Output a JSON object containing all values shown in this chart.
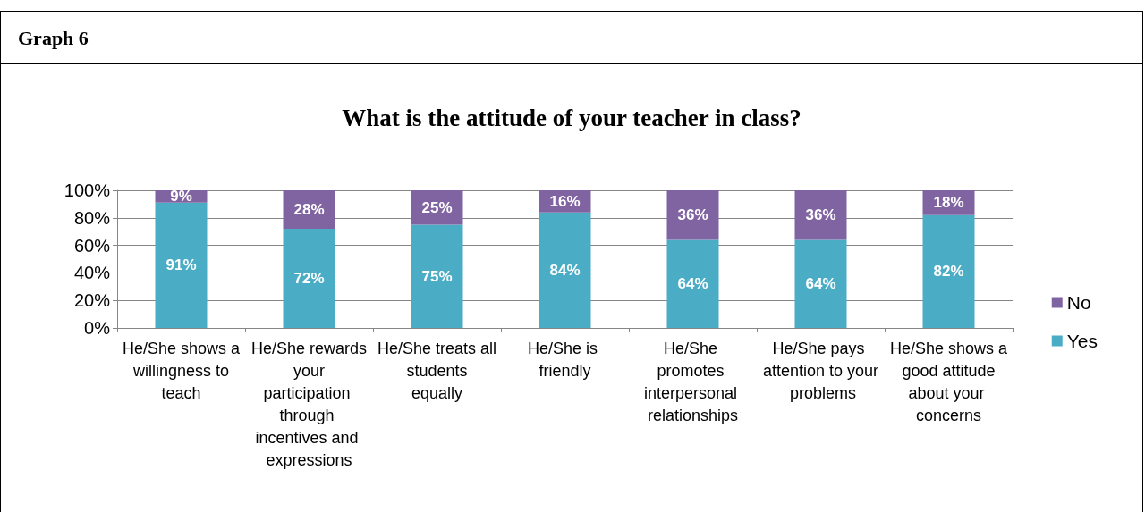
{
  "chart_data": {
    "type": "bar",
    "stacked": true,
    "subtitle": "Graph 6",
    "title": "What is the attitude of your teacher in class?",
    "categories": [
      "He/She shows a willingness to teach",
      "He/She rewards your participation through incentives and expressions",
      "He/She treats all students equally",
      "He/She is friendly",
      "He/She promotes interpersonal relationships",
      "He/She pays attention to your problems",
      "He/She shows a good attitude about your concerns"
    ],
    "series": [
      {
        "name": "Yes",
        "color": "#4bacc6",
        "values": [
          91,
          72,
          75,
          84,
          64,
          64,
          82
        ],
        "value_labels": [
          "91%",
          "72%",
          "75%",
          "84%",
          "64%",
          "64%",
          "82%"
        ]
      },
      {
        "name": "No",
        "color": "#8064a2",
        "values": [
          9,
          28,
          25,
          16,
          36,
          36,
          18
        ],
        "value_labels": [
          "9%",
          "28%",
          "25%",
          "16%",
          "36%",
          "36%",
          "18%"
        ]
      }
    ],
    "ylim": [
      0,
      100
    ],
    "yticks": [
      {
        "value": 0,
        "label": "0%"
      },
      {
        "value": 20,
        "label": "20%"
      },
      {
        "value": 40,
        "label": "40%"
      },
      {
        "value": 60,
        "label": "60%"
      },
      {
        "value": 80,
        "label": "80%"
      },
      {
        "value": 100,
        "label": "100%"
      }
    ],
    "grid": "y",
    "legend": "right"
  }
}
